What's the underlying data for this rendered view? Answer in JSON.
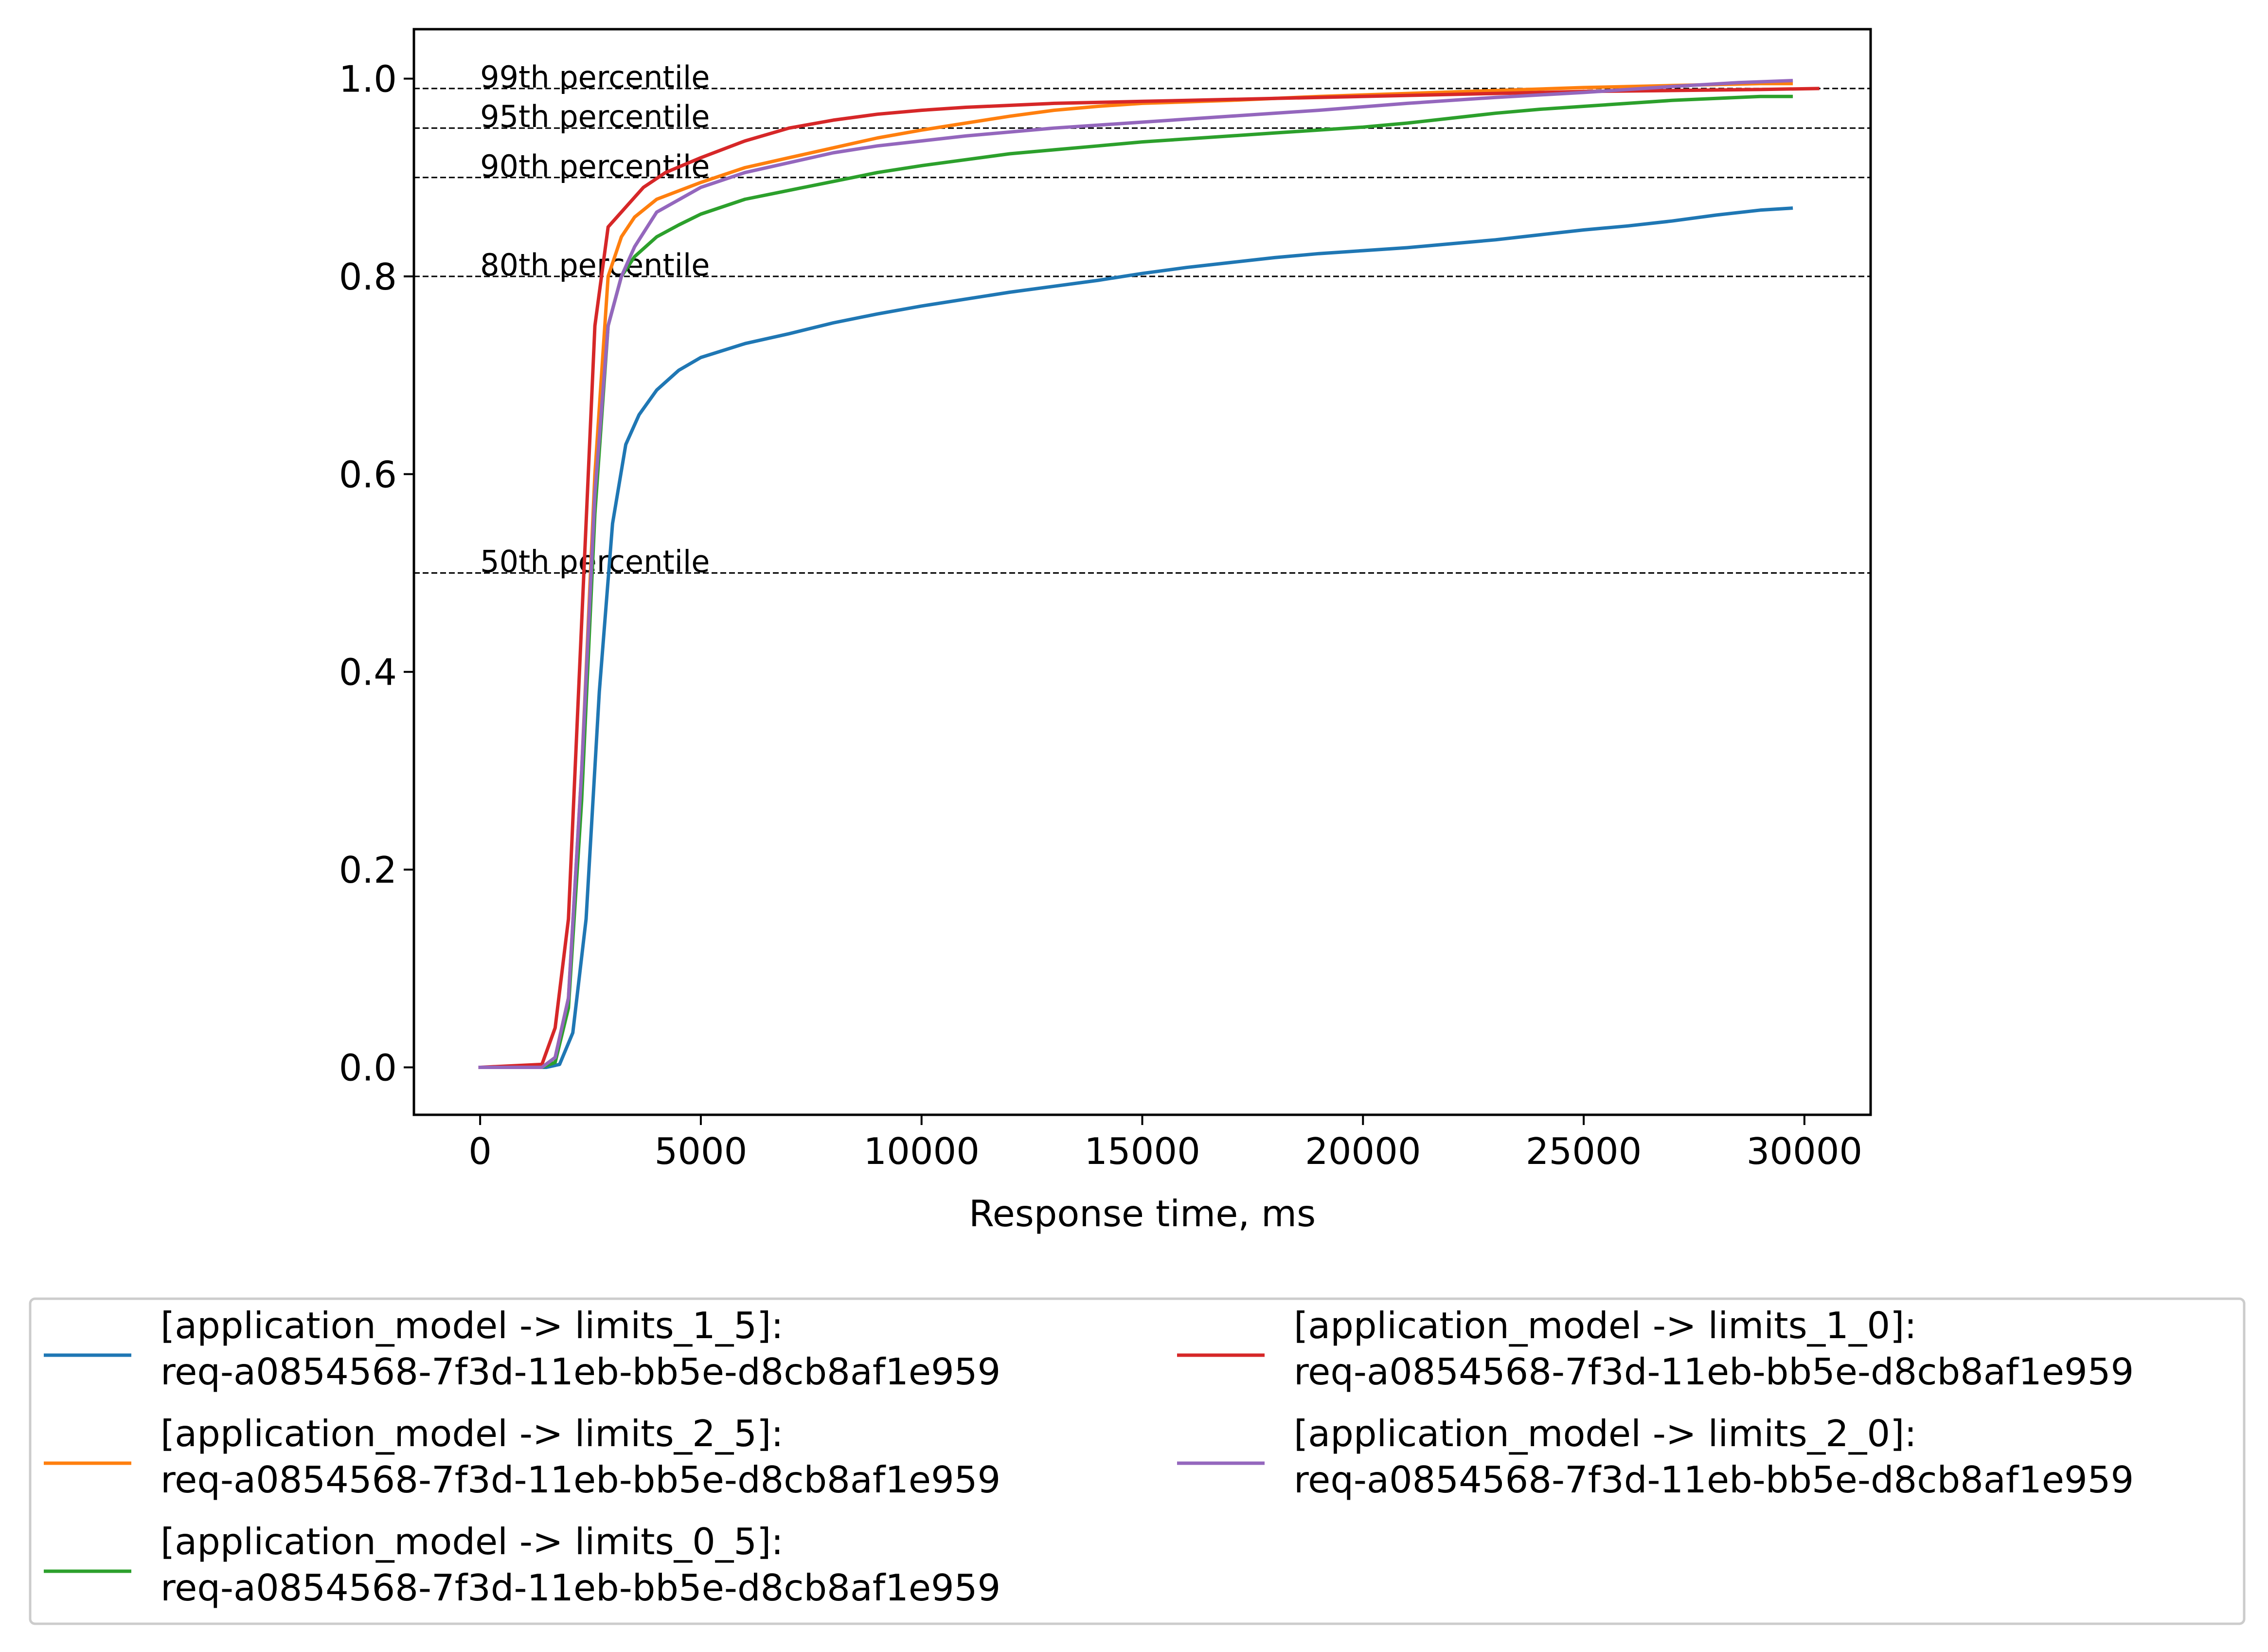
{
  "chart_data": {
    "type": "line",
    "title": "",
    "xlabel": "Response time, ms",
    "ylabel": "",
    "xlim": [
      -1500,
      31500
    ],
    "ylim": [
      -0.048,
      1.05
    ],
    "xticks": [
      0,
      5000,
      10000,
      15000,
      20000,
      25000,
      30000
    ],
    "xtick_labels": [
      "0",
      "5000",
      "10000",
      "15000",
      "20000",
      "25000",
      "30000"
    ],
    "yticks": [
      0.0,
      0.2,
      0.4,
      0.6,
      0.8,
      1.0
    ],
    "ytick_labels": [
      "0.0",
      "0.2",
      "0.4",
      "0.6",
      "0.8",
      "1.0"
    ],
    "grid": false,
    "legend_position": "below",
    "reference_lines": [
      {
        "y": 0.99,
        "label": "99th percentile"
      },
      {
        "y": 0.95,
        "label": "95th percentile"
      },
      {
        "y": 0.9,
        "label": "90th percentile"
      },
      {
        "y": 0.8,
        "label": "80th percentile"
      },
      {
        "y": 0.5,
        "label": "50th percentile"
      }
    ],
    "series": [
      {
        "name": "[application_model -> limits_1_5]:\nreq-a0854568-7f3d-11eb-bb5e-d8cb8af1e959",
        "color": "#1f77b4",
        "x": [
          0,
          1500,
          1800,
          2100,
          2400,
          2700,
          3000,
          3300,
          3600,
          4000,
          4500,
          5000,
          6000,
          7000,
          8000,
          9000,
          10000,
          11000,
          12000,
          13000,
          14000,
          15000,
          16000,
          17000,
          18000,
          19000,
          20000,
          21000,
          22000,
          23000,
          24000,
          25000,
          26000,
          27000,
          28000,
          29000,
          29700
        ],
        "y": [
          0,
          0,
          0.003,
          0.035,
          0.15,
          0.38,
          0.55,
          0.63,
          0.66,
          0.685,
          0.705,
          0.718,
          0.732,
          0.742,
          0.753,
          0.762,
          0.77,
          0.777,
          0.784,
          0.79,
          0.796,
          0.803,
          0.809,
          0.814,
          0.819,
          0.823,
          0.826,
          0.829,
          0.833,
          0.837,
          0.842,
          0.847,
          0.851,
          0.856,
          0.862,
          0.867,
          0.869
        ]
      },
      {
        "name": "[application_model -> limits_2_5]:\nreq-a0854568-7f3d-11eb-bb5e-d8cb8af1e959",
        "color": "#ff7f0e",
        "x": [
          0,
          1400,
          1700,
          2000,
          2300,
          2600,
          2900,
          3200,
          3500,
          4000,
          5000,
          6000,
          7000,
          8000,
          9000,
          10000,
          11000,
          12000,
          13000,
          14000,
          15000,
          17000,
          19000,
          21000,
          23000,
          25000,
          27000,
          29000,
          29700
        ],
        "y": [
          0,
          0,
          0.01,
          0.07,
          0.3,
          0.6,
          0.8,
          0.84,
          0.86,
          0.878,
          0.895,
          0.91,
          0.92,
          0.93,
          0.94,
          0.948,
          0.955,
          0.962,
          0.968,
          0.972,
          0.975,
          0.978,
          0.982,
          0.985,
          0.988,
          0.991,
          0.993,
          0.995,
          0.995
        ]
      },
      {
        "name": "[application_model -> limits_0_5]:\nreq-a0854568-7f3d-11eb-bb5e-d8cb8af1e959",
        "color": "#2ca02c",
        "x": [
          0,
          1400,
          1700,
          2000,
          2300,
          2600,
          2900,
          3200,
          3500,
          4000,
          4500,
          5000,
          6000,
          7000,
          8000,
          9000,
          10000,
          11000,
          12000,
          13000,
          14000,
          15000,
          16000,
          17000,
          18000,
          19000,
          20000,
          21000,
          22000,
          23000,
          24000,
          25000,
          26000,
          27000,
          28000,
          29000,
          29700
        ],
        "y": [
          0,
          0,
          0.005,
          0.06,
          0.27,
          0.56,
          0.75,
          0.8,
          0.82,
          0.84,
          0.852,
          0.863,
          0.878,
          0.887,
          0.896,
          0.905,
          0.912,
          0.918,
          0.924,
          0.928,
          0.932,
          0.936,
          0.939,
          0.942,
          0.945,
          0.948,
          0.951,
          0.955,
          0.96,
          0.965,
          0.969,
          0.972,
          0.975,
          0.978,
          0.98,
          0.982,
          0.982
        ]
      },
      {
        "name": "[application_model -> limits_1_0]:\nreq-a0854568-7f3d-11eb-bb5e-d8cb8af1e959",
        "color": "#d62728",
        "x": [
          0,
          1400,
          1700,
          2000,
          2300,
          2600,
          2900,
          3300,
          3700,
          4200,
          5000,
          6000,
          7000,
          8000,
          9000,
          10000,
          11000,
          12000,
          13000,
          14000,
          15000,
          17000,
          19000,
          21000,
          23000,
          25000,
          27000,
          29000,
          30300
        ],
        "y": [
          0,
          0.003,
          0.04,
          0.15,
          0.45,
          0.75,
          0.85,
          0.87,
          0.89,
          0.905,
          0.92,
          0.937,
          0.95,
          0.958,
          0.964,
          0.968,
          0.971,
          0.973,
          0.975,
          0.976,
          0.977,
          0.979,
          0.981,
          0.983,
          0.985,
          0.987,
          0.988,
          0.989,
          0.99
        ]
      },
      {
        "name": "[application_model -> limits_2_0]:\nreq-a0854568-7f3d-11eb-bb5e-d8cb8af1e959",
        "color": "#9467bd",
        "x": [
          0,
          1400,
          1700,
          2000,
          2300,
          2600,
          2900,
          3200,
          3500,
          4000,
          5000,
          6000,
          7000,
          8000,
          9000,
          10000,
          11000,
          12000,
          13000,
          14000,
          15000,
          17000,
          19000,
          21000,
          23000,
          25000,
          27000,
          28500,
          29700
        ],
        "y": [
          0,
          0,
          0.01,
          0.07,
          0.3,
          0.58,
          0.75,
          0.8,
          0.83,
          0.865,
          0.89,
          0.905,
          0.915,
          0.925,
          0.932,
          0.937,
          0.942,
          0.946,
          0.95,
          0.953,
          0.956,
          0.962,
          0.968,
          0.975,
          0.981,
          0.986,
          0.992,
          0.996,
          0.998
        ]
      }
    ]
  }
}
